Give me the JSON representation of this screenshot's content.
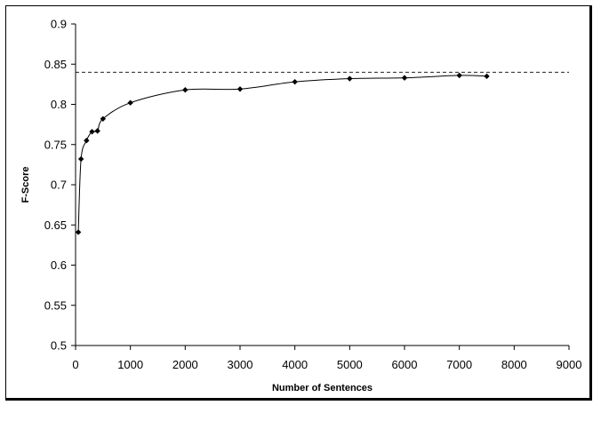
{
  "chart_data": {
    "type": "line",
    "title": "",
    "xlabel": "Number of Sentences",
    "ylabel": "F-Score",
    "xlim": [
      0,
      9000
    ],
    "ylim": [
      0.5,
      0.9
    ],
    "x_ticks": [
      0,
      1000,
      2000,
      3000,
      4000,
      5000,
      6000,
      7000,
      8000,
      9000
    ],
    "x_tick_labels": [
      "0",
      "1000",
      "2000",
      "3000",
      "4000",
      "5000",
      "6000",
      "7000",
      "8000",
      "9000"
    ],
    "y_ticks": [
      0.5,
      0.55,
      0.6,
      0.65,
      0.7,
      0.75,
      0.8,
      0.85,
      0.9
    ],
    "y_tick_labels": [
      "0.5",
      "0.55",
      "0.6",
      "0.65",
      "0.7",
      "0.75",
      "0.8",
      "0.85",
      "0.9"
    ],
    "grid": false,
    "legend": "none",
    "reference_line": {
      "y": 0.84,
      "style": "dashed"
    },
    "series": [
      {
        "x": [
          50,
          100,
          200,
          300,
          400,
          500,
          1000,
          2000,
          3000,
          4000,
          5000,
          6000,
          7000,
          7500
        ],
        "y": [
          0.641,
          0.732,
          0.755,
          0.766,
          0.767,
          0.782,
          0.802,
          0.818,
          0.819,
          0.828,
          0.832,
          0.833,
          0.836,
          0.835
        ],
        "color": "#000000",
        "marker": "diamond",
        "smooth": true
      }
    ]
  }
}
